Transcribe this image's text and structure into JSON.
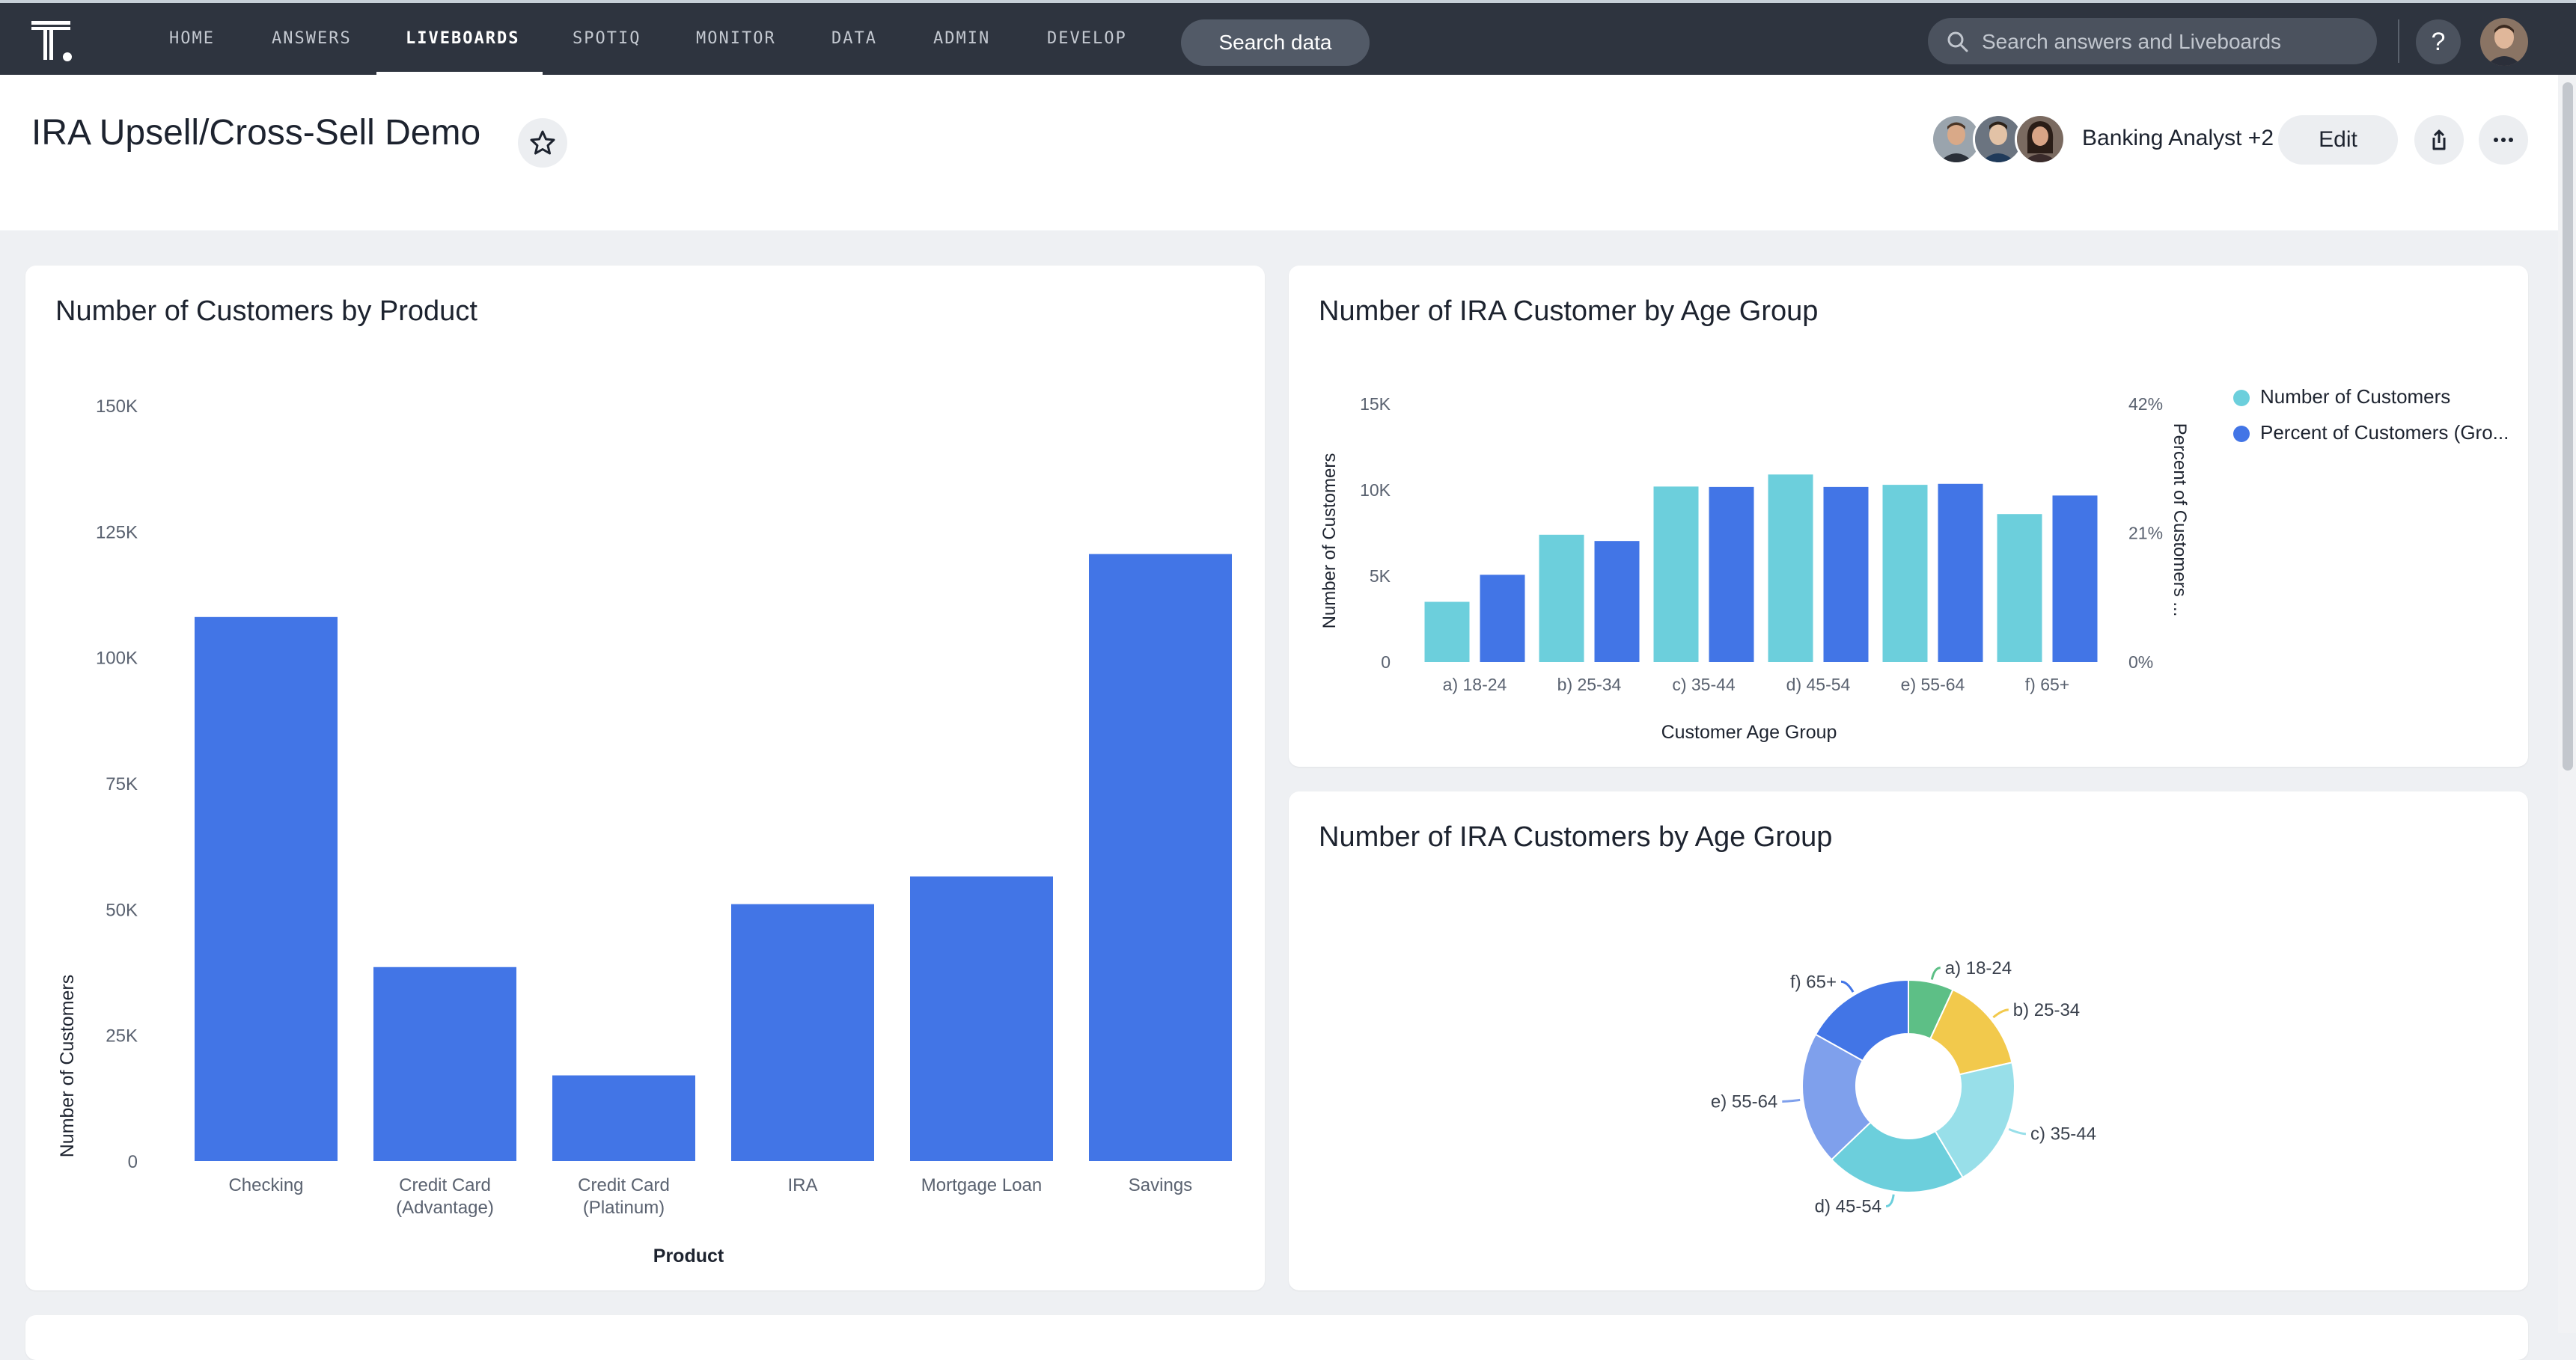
{
  "nav": {
    "items": [
      {
        "label": "HOME",
        "active": false
      },
      {
        "label": "ANSWERS",
        "active": false
      },
      {
        "label": "LIVEBOARDS",
        "active": true
      },
      {
        "label": "SPOTIQ",
        "active": false
      },
      {
        "label": "MONITOR",
        "active": false
      },
      {
        "label": "DATA",
        "active": false
      },
      {
        "label": "ADMIN",
        "active": false
      },
      {
        "label": "DEVELOP",
        "active": false
      }
    ],
    "search_data_label": "Search data",
    "search_placeholder": "Search answers and Liveboards",
    "help_label": "?"
  },
  "header": {
    "title": "IRA Upsell/Cross-Sell Demo",
    "collaborators_label": "Banking Analyst +2",
    "edit_label": "Edit"
  },
  "colors": {
    "nav_bg": "#2e343f",
    "bar_blue": "#4275e6",
    "bar_teal": "#6ccfdc",
    "page_bg": "#eef0f3"
  },
  "icons": [
    "logo-icon",
    "search-icon",
    "star-icon",
    "share-icon",
    "more-icon"
  ],
  "chart_data": [
    {
      "type": "bar",
      "title": "Number of Customers by Product",
      "xlabel": "Product",
      "ylabel": "Number of Customers",
      "categories": [
        "Checking",
        "Credit Card\n(Advantage)",
        "Credit Card\n(Platinum)",
        "IRA",
        "Mortgage Loan",
        "Savings"
      ],
      "values": [
        108000,
        38500,
        17000,
        51000,
        56500,
        120500
      ],
      "ylim": [
        0,
        150000
      ],
      "yticks": [
        0,
        25000,
        50000,
        75000,
        100000,
        125000,
        150000
      ],
      "ytick_labels": [
        "0",
        "25K",
        "50K",
        "75K",
        "100K",
        "125K",
        "150K"
      ],
      "color": "#4275e6",
      "grid": false
    },
    {
      "type": "bar",
      "title": "Number of IRA Customer by Age Group",
      "xlabel": "Customer Age Group",
      "ylabel": "Number of Customers",
      "y2label": "Percent of Customers ...",
      "categories": [
        "a) 18-24",
        "b) 25-34",
        "c) 35-44",
        "d) 45-54",
        "e) 55-64",
        "f) 65+"
      ],
      "series": [
        {
          "name": "Number of Customers",
          "axis": "left",
          "color": "#6ccfdc",
          "values": [
            3500,
            7400,
            10200,
            10900,
            10300,
            8600
          ]
        },
        {
          "name": "Percent of Customers (Gro...",
          "axis": "right",
          "color": "#4275e6",
          "values": [
            14.2,
            19.7,
            28.5,
            28.5,
            29.0,
            27.1
          ]
        }
      ],
      "ylim": [
        0,
        15000
      ],
      "yticks": [
        0,
        5000,
        10000,
        15000
      ],
      "ytick_labels": [
        "0",
        "5K",
        "10K",
        "15K"
      ],
      "y2lim": [
        0,
        42
      ],
      "y2ticks": [
        0,
        21,
        42
      ],
      "y2tick_labels": [
        "0%",
        "21%",
        "42%"
      ],
      "legend": "right",
      "grid": false
    },
    {
      "type": "pie",
      "donut": true,
      "title": "Number of IRA Customers by Age Group",
      "labels": [
        "a) 18-24",
        "b) 25-34",
        "c) 35-44",
        "d) 45-54",
        "e) 55-64",
        "f) 65+"
      ],
      "values": [
        3500,
        7400,
        10200,
        10900,
        10300,
        8600
      ],
      "colors": [
        "#5dbf86",
        "#f2c94c",
        "#98dfe9",
        "#6ccfdc",
        "#7fa0ec",
        "#4275e6"
      ]
    }
  ]
}
